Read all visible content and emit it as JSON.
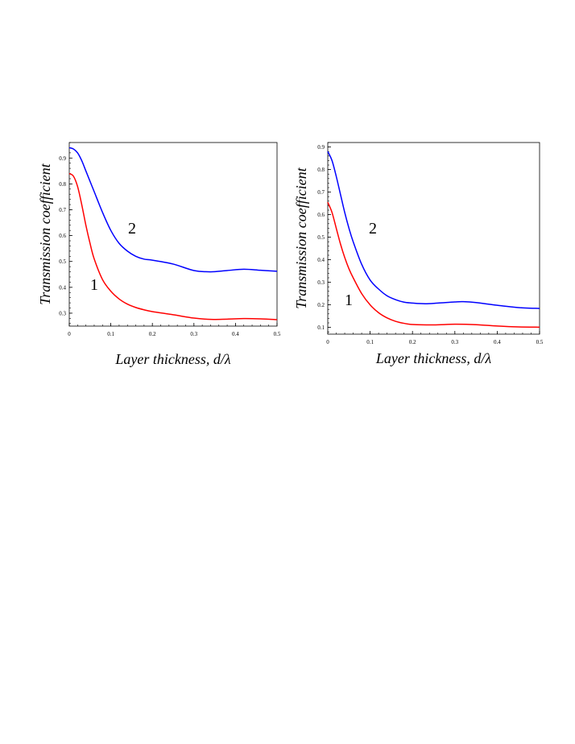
{
  "chart_data": [
    {
      "type": "line",
      "xlabel": "Layer thickness, d/λ",
      "ylabel": "Transmission coefficient",
      "xlim": [
        0,
        0.5
      ],
      "ylim": [
        0.25,
        0.96
      ],
      "xticks": [
        "0",
        "0.1",
        "0.2",
        "0.3",
        "0.4",
        "0.5"
      ],
      "yticks": [
        "0.3",
        "0.4",
        "0.5",
        "0.6",
        "0.7",
        "0.8",
        "0.9"
      ],
      "grid": false,
      "series": [
        {
          "color": "#ff0000",
          "label": "1",
          "x": [
            0,
            0.01,
            0.02,
            0.03,
            0.04,
            0.05,
            0.06,
            0.08,
            0.1,
            0.12,
            0.14,
            0.16,
            0.18,
            0.2,
            0.25,
            0.3,
            0.34,
            0.38,
            0.42,
            0.46,
            0.5
          ],
          "y": [
            0.84,
            0.83,
            0.79,
            0.72,
            0.64,
            0.57,
            0.51,
            0.43,
            0.385,
            0.355,
            0.335,
            0.322,
            0.313,
            0.306,
            0.294,
            0.281,
            0.276,
            0.277,
            0.279,
            0.278,
            0.275
          ]
        },
        {
          "color": "#0000ff",
          "label": "2",
          "x": [
            0,
            0.01,
            0.02,
            0.03,
            0.04,
            0.05,
            0.06,
            0.08,
            0.1,
            0.12,
            0.14,
            0.16,
            0.18,
            0.2,
            0.25,
            0.3,
            0.34,
            0.38,
            0.42,
            0.46,
            0.5
          ],
          "y": [
            0.94,
            0.935,
            0.92,
            0.89,
            0.85,
            0.81,
            0.77,
            0.69,
            0.62,
            0.57,
            0.54,
            0.52,
            0.509,
            0.505,
            0.49,
            0.465,
            0.46,
            0.465,
            0.47,
            0.466,
            0.462
          ]
        }
      ]
    },
    {
      "type": "line",
      "xlabel": "Layer thickness, d/λ",
      "ylabel": "Transmission coefficient",
      "xlim": [
        0,
        0.5
      ],
      "ylim": [
        0.07,
        0.92
      ],
      "xticks": [
        "0",
        "0.1",
        "0.2",
        "0.3",
        "0.4",
        "0.5"
      ],
      "yticks": [
        "0.1",
        "0.2",
        "0.3",
        "0.4",
        "0.5",
        "0.6",
        "0.7",
        "0.8",
        "0.9"
      ],
      "grid": false,
      "series": [
        {
          "color": "#ff0000",
          "label": "1",
          "x": [
            0,
            0.01,
            0.02,
            0.03,
            0.04,
            0.05,
            0.06,
            0.08,
            0.1,
            0.12,
            0.14,
            0.16,
            0.18,
            0.2,
            0.25,
            0.3,
            0.35,
            0.4,
            0.45,
            0.5
          ],
          "y": [
            0.655,
            0.61,
            0.54,
            0.47,
            0.41,
            0.36,
            0.32,
            0.25,
            0.2,
            0.165,
            0.142,
            0.127,
            0.118,
            0.113,
            0.111,
            0.114,
            0.112,
            0.106,
            0.102,
            0.101
          ]
        },
        {
          "color": "#0000ff",
          "label": "2",
          "x": [
            0,
            0.01,
            0.02,
            0.03,
            0.04,
            0.05,
            0.06,
            0.08,
            0.1,
            0.12,
            0.14,
            0.16,
            0.18,
            0.2,
            0.23,
            0.26,
            0.3,
            0.32,
            0.35,
            0.4,
            0.45,
            0.5
          ],
          "y": [
            0.88,
            0.84,
            0.77,
            0.69,
            0.61,
            0.54,
            0.48,
            0.38,
            0.31,
            0.27,
            0.24,
            0.223,
            0.212,
            0.208,
            0.205,
            0.208,
            0.213,
            0.214,
            0.21,
            0.198,
            0.188,
            0.184
          ]
        }
      ]
    }
  ]
}
